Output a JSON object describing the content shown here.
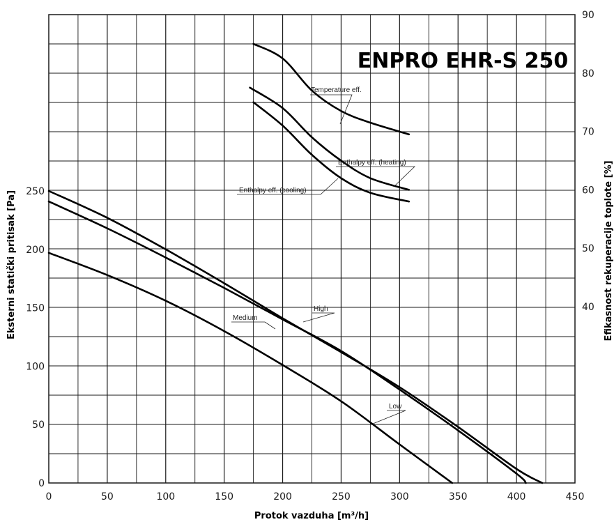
{
  "colors": {
    "title": "#2a8a9c",
    "axis_title": "#2a9ab0",
    "grid": "#1a1a1a",
    "curve": "#000000",
    "ticks": "#1a1a1a"
  },
  "chart_data": {
    "type": "line",
    "title": "ENPRO EHR-S 250",
    "xlabel": "Protok vazduha [m³/h]",
    "ylabel_left": "Eksterni statički pritisak [Pa]",
    "ylabel_right": "Efikasnost rekuperacije toplote [%]",
    "xlim": [
      0,
      450
    ],
    "ylim_left": [
      0,
      250
    ],
    "ylim_right": [
      40,
      90
    ],
    "x_ticks": [
      "0",
      "50",
      "100",
      "150",
      "200",
      "250",
      "300",
      "350",
      "400",
      "450"
    ],
    "y_ticks_left": [
      "0",
      "50",
      "100",
      "150",
      "200",
      "250"
    ],
    "y_ticks_right": [
      "40",
      "50",
      "60",
      "70",
      "80",
      "90"
    ],
    "grid": true,
    "series": [
      {
        "name": "High",
        "axis": "left",
        "x": [
          0,
          50,
          100,
          150,
          200,
          250,
          300,
          350,
          400,
          422
        ],
        "y": [
          250,
          227,
          200,
          171,
          141,
          112,
          82,
          48,
          12,
          0
        ]
      },
      {
        "name": "Medium",
        "axis": "left",
        "x": [
          0,
          50,
          100,
          150,
          200,
          250,
          300,
          350,
          400,
          408
        ],
        "y": [
          241,
          218,
          193,
          167,
          140,
          113,
          80,
          45,
          8,
          0
        ]
      },
      {
        "name": "Low",
        "axis": "left",
        "x": [
          0,
          50,
          100,
          150,
          200,
          250,
          300,
          345
        ],
        "y": [
          197,
          178,
          156,
          130,
          101,
          70,
          33,
          0
        ]
      },
      {
        "name": "Temperature eff.",
        "axis": "right",
        "x": [
          175,
          200,
          225,
          250,
          275,
          308
        ],
        "y": [
          85,
          82.5,
          77,
          73.5,
          71.5,
          69.5
        ]
      },
      {
        "name": "Enthalpy eff. (heating)",
        "axis": "right",
        "x": [
          172,
          200,
          225,
          250,
          275,
          308
        ],
        "y": [
          77.5,
          74,
          69,
          65,
          62,
          60
        ]
      },
      {
        "name": "Enthalpy eff. (cooling)",
        "axis": "right",
        "x": [
          175,
          200,
          225,
          250,
          275,
          308
        ],
        "y": [
          75,
          71,
          66,
          62,
          59.5,
          58
        ]
      }
    ],
    "curve_labels": {
      "high": "High",
      "medium": "Medium",
      "low": "Low",
      "temperature": "Temperature eff.",
      "enthalpy_heating": "Enthalpy eff. (heating)",
      "enthalpy_cooling": "Enthalpy eff. (cooling)"
    }
  }
}
